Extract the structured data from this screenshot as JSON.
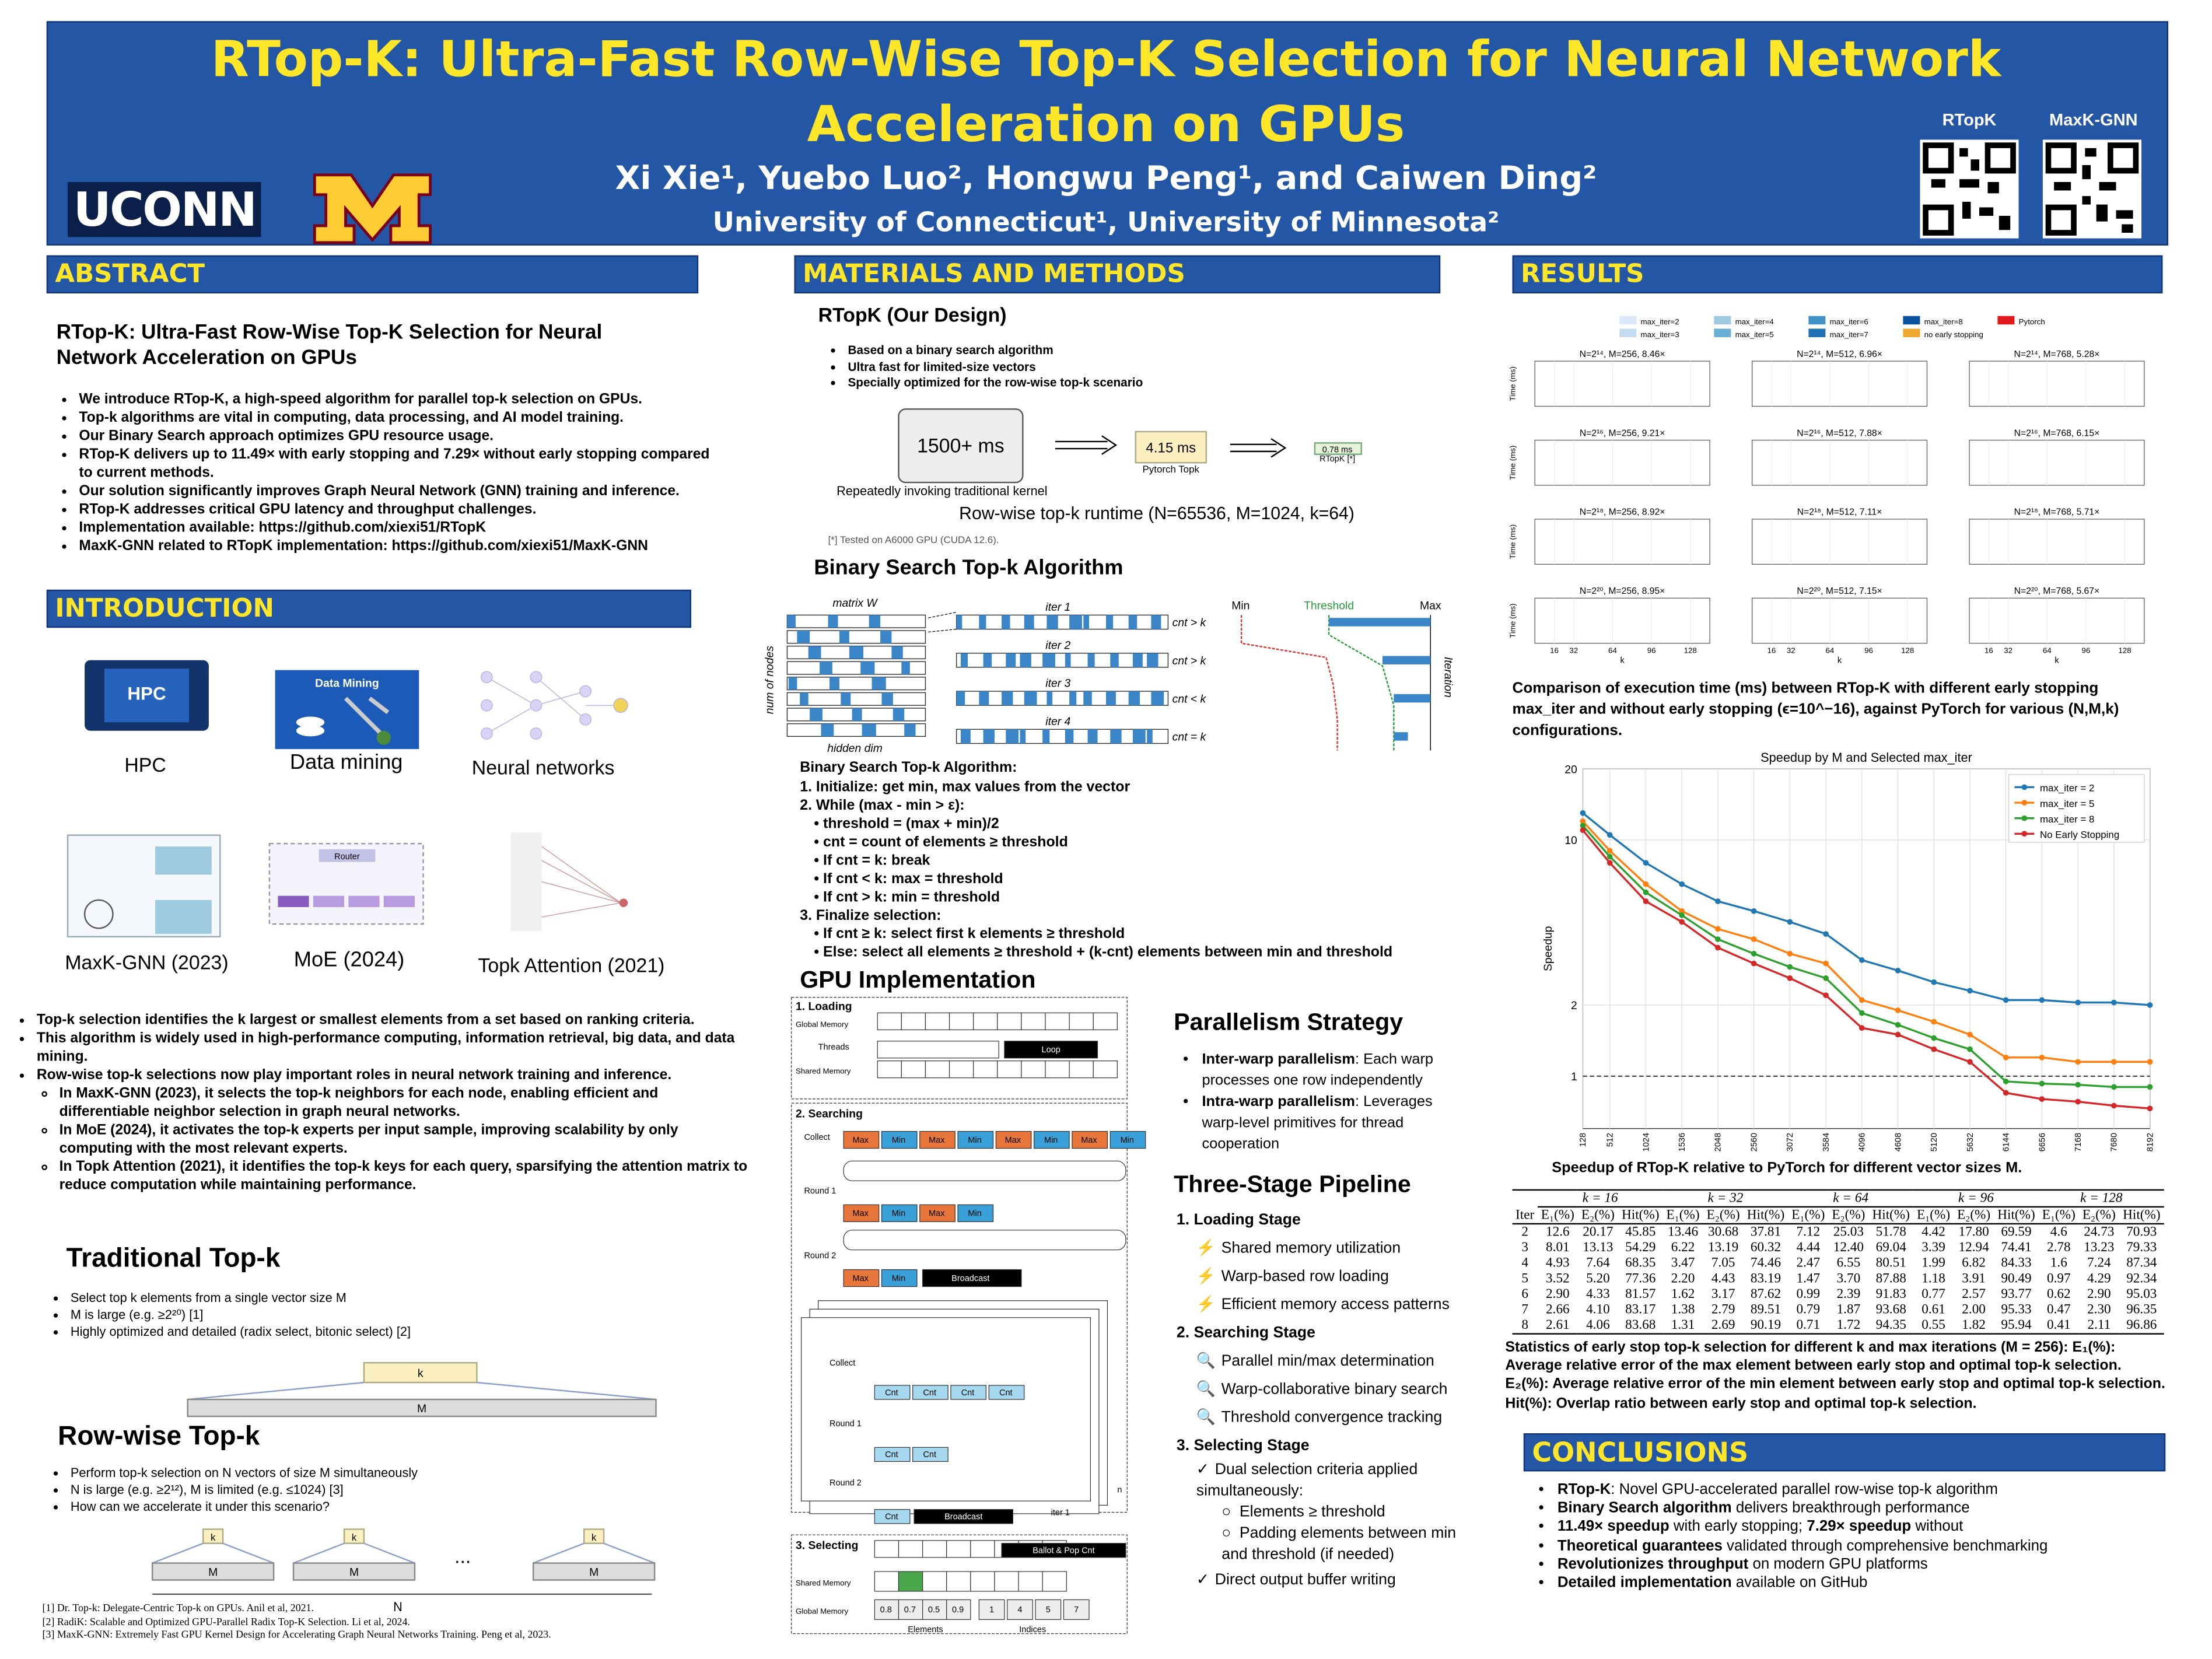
{
  "header": {
    "title": "RTop-K: Ultra-Fast Row-Wise Top-K Selection for Neural Network Acceleration on GPUs",
    "authors": "Xi Xie¹, Yuebo Luo², Hongwu Peng¹, and Caiwen Ding²",
    "affiliations": "University of Connecticut¹, University of Minnesota²",
    "logo_left": "UCONN",
    "qr_labels": [
      "RTopK",
      "MaxK-GNN"
    ]
  },
  "abstract": {
    "heading": "ABSTRACT",
    "title": "RTop-K: Ultra-Fast Row-Wise Top-K Selection for Neural Network Acceleration on GPUs",
    "bullets": [
      "We introduce RTop-K, a high-speed algorithm for parallel top-k selection on GPUs.",
      "Top-k algorithms are vital in computing, data processing, and AI model training.",
      "Our Binary Search approach optimizes GPU resource usage.",
      "RTop-K delivers up to 11.49× with early stopping and 7.29× without early stopping compared to current methods.",
      "Our solution significantly improves Graph Neural Network (GNN) training and inference.",
      "RTop-K addresses critical GPU latency and throughput challenges.",
      "Implementation available: https://github.com/xiexi51/RTopK",
      "MaxK-GNN related to RTopK implementation: https://github.com/xiexi51/MaxK-GNN"
    ]
  },
  "introduction": {
    "heading": "INTRODUCTION",
    "figures": [
      {
        "caption": "HPC",
        "label": "HPC"
      },
      {
        "caption": "Data mining",
        "label": "Data Mining"
      },
      {
        "caption": "Neural networks"
      },
      {
        "caption": "MaxK-GNN (2023)"
      },
      {
        "caption": "MoE (2024)",
        "label": "Router"
      },
      {
        "caption": "Topk Attention (2021)"
      }
    ],
    "bullets": [
      "Top-k selection identifies the k largest or smallest elements from a set based on ranking criteria.",
      "This algorithm is widely used in high-performance computing, information retrieval, big data, and data mining.",
      {
        "text": "Row-wise top-k selections now play important roles in neural network training and inference.",
        "sub": [
          "In MaxK-GNN (2023), it selects the top-k neighbors for each node, enabling efficient and differentiable neighbor selection in graph neural networks.",
          "In MoE (2024), it activates the top-k experts per input sample, improving scalability by only computing with the most relevant experts.",
          "In Topk Attention (2021), it identifies the top-k keys for each query, sparsifying the attention matrix to reduce computation while maintaining performance."
        ]
      }
    ],
    "traditional": {
      "heading": "Traditional Top-k",
      "bullets": [
        "Select top k elements from a single vector size M",
        "M is large (e.g. ≥2²⁰) [1]",
        "Highly optimized and detailed (radix select, bitonic select) [2]"
      ],
      "k": "k",
      "m": "M"
    },
    "rowwise": {
      "heading": "Row-wise Top-k",
      "bullets": [
        "Perform top-k selection on N vectors of size M simultaneously",
        "N is large (e.g. ≥2¹²), M is limited (e.g. ≤1024) [3]",
        "How can we accelerate it under this scenario?"
      ],
      "k": "k",
      "m": "M",
      "ellipsis": "...",
      "n": "N"
    },
    "references": [
      "[1] Dr. Top-k: Delegate-Centric Top-k on GPUs. Anil et al, 2021.",
      "[2] RadiK: Scalable and Optimized GPU-Parallel Radix Top-K Selection. Li et al, 2024.",
      "[3] MaxK-GNN: Extremely Fast GPU Kernel Design for Accelerating Graph Neural Networks Training. Peng et al, 2023."
    ]
  },
  "methods": {
    "heading": "MATERIALS AND METHODS",
    "design": {
      "heading": "RTopK (Our Design)",
      "bullets": [
        "Based on a binary search algorithm",
        "Ultra fast for limited-size vectors",
        "Specially optimized for the row-wise top-k scenario"
      ],
      "baseline": "1500+ ms",
      "baseline_note": "Repeatedly invoking traditional kernel",
      "pytorch": "4.15 ms",
      "pytorch_label": "Pytorch Topk",
      "rtopk": "0.78 ms",
      "rtopk_label": "RTopK [*]",
      "caption": "Row-wise top-k runtime (N=65536, M=1024, k=64)",
      "footnote": "[*] Tested on A6000 GPU (CUDA 12.6)."
    },
    "binary": {
      "heading": "Binary Search Top-k Algorithm",
      "matrix": "matrix W",
      "rows": "num of nodes",
      "cols": "hidden dim",
      "iters": [
        "iter 1",
        "iter 2",
        "iter 3",
        "iter 4"
      ],
      "conds": [
        "cnt > k",
        "cnt > k",
        "cnt < k",
        "cnt = k"
      ],
      "min": "Min",
      "threshold": "Threshold",
      "max": "Max",
      "axis": "Iteration",
      "algorithm_title": "Binary Search Top-k Algorithm:",
      "steps": [
        "1. Initialize: get min, max values from the vector",
        {
          "text": "2. While (max - min > ε):",
          "sub": [
            "threshold = (max + min)/2",
            "cnt = count of elements ≥ threshold",
            "If cnt = k: break",
            "If cnt < k: max = threshold",
            "If cnt > k: min = threshold"
          ]
        },
        {
          "text": "3. Finalize selection:",
          "sub": [
            "If cnt ≥ k: select first k elements ≥ threshold",
            "Else: select all elements ≥ threshold + (k-cnt) elements between min and threshold"
          ]
        }
      ]
    },
    "gpu": {
      "heading": "GPU Implementation",
      "loading": "1. Loading",
      "global": "Global Memory",
      "threads": "Threads",
      "loop": "Loop",
      "shared": "Shared Memory",
      "searching": "2. Searching",
      "collect": "Collect",
      "max": "Max",
      "min": "Min",
      "round1": "Round 1",
      "round2": "Round 2",
      "broadcast": "Broadcast",
      "cnt": "Cnt",
      "iter": "iter 1",
      "n": "n",
      "selecting": "3. Selecting",
      "ballot": "Ballot & Pop Cnt",
      "element_values": [
        "0.8",
        "0.7",
        "0.5",
        "0.9"
      ],
      "index_values": [
        "1",
        "4",
        "5",
        "7"
      ],
      "elements": "Elements",
      "indices": "Indices"
    },
    "parallelism": {
      "heading": "Parallelism Strategy",
      "items": [
        [
          "Inter-warp parallelism",
          ": Each warp processes one row independently"
        ],
        [
          "Intra-warp parallelism",
          ": Leverages warp-level primitives for thread cooperation"
        ]
      ]
    },
    "pipeline": {
      "heading": "Three-Stage Pipeline",
      "stages": [
        {
          "title": "1. Loading Stage",
          "icon": "⚡",
          "items": [
            "Shared memory utilization",
            "Warp-based row loading",
            "Efficient memory access patterns"
          ]
        },
        {
          "title": "2. Searching Stage",
          "icon": "🔍",
          "items": [
            "Parallel min/max determination",
            "Warp-collaborative binary search",
            "Threshold convergence tracking"
          ]
        },
        {
          "title": "3. Selecting Stage",
          "icon": "✓",
          "items": [
            "Dual selection criteria applied simultaneously:"
          ],
          "sub": [
            "Elements ≥ threshold",
            "Padding elements between min and threshold (if needed)"
          ],
          "after": [
            "Direct output buffer writing"
          ]
        }
      ]
    }
  },
  "results": {
    "heading": "RESULTS",
    "grid": {
      "legend": [
        {
          "name": "max_iter=2",
          "color": "#dbe9f6"
        },
        {
          "name": "max_iter=3",
          "color": "#c6dbef"
        },
        {
          "name": "max_iter=4",
          "color": "#9ecae1"
        },
        {
          "name": "max_iter=5",
          "color": "#6baed6"
        },
        {
          "name": "max_iter=6",
          "color": "#4292c6"
        },
        {
          "name": "max_iter=7",
          "color": "#2171b5"
        },
        {
          "name": "max_iter=8",
          "color": "#08519c"
        },
        {
          "name": "no early stopping",
          "color": "#f0a830"
        },
        {
          "name": "Pytorch",
          "color": "#e31a1c"
        }
      ],
      "titles": [
        "N=2¹⁴, M=256, 8.46×",
        "N=2¹⁴, M=512, 6.96×",
        "N=2¹⁴, M=768, 5.28×",
        "N=2¹⁶, M=256, 9.21×",
        "N=2¹⁶, M=512, 7.88×",
        "N=2¹⁶, M=768, 6.15×",
        "N=2¹⁸, M=256, 8.92×",
        "N=2¹⁸, M=512, 7.11×",
        "N=2¹⁸, M=768, 5.71×",
        "N=2²⁰, M=256, 8.95×",
        "N=2²⁰, M=512, 7.15×",
        "N=2²⁰, M=768, 5.67×"
      ],
      "xlim": [
        0,
        144
      ],
      "xticks": [
        16,
        32,
        64,
        96,
        128
      ],
      "xlabel": "k",
      "ylabel": "Time (ms)"
    },
    "grid_caption": "Comparison of execution time (ms) between RTop-K with different early stopping max_iter and without early stopping (ϵ=10^−16), against PyTorch for various (N,M,k) configurations.",
    "chart_data": {
      "type": "line",
      "title": "Speedup by M and Selected max_iter",
      "ylabel": "Speedup",
      "x": [
        128,
        512,
        1024,
        1536,
        2048,
        2560,
        3072,
        3584,
        4096,
        4608,
        5120,
        5632,
        6144,
        6656,
        7168,
        7680,
        8192
      ],
      "xlim": [
        128,
        8192
      ],
      "ylim": [
        0.6,
        20
      ],
      "yticks": [
        1,
        2,
        10,
        20
      ],
      "log_scale": true,
      "grid": true,
      "reference_line": 1,
      "legend": "upper right",
      "series": [
        {
          "name": "max_iter = 2",
          "color": "#1f77b4",
          "values": [
            13,
            10.5,
            8,
            6.5,
            5.5,
            5,
            4.5,
            4,
            3.1,
            2.8,
            2.5,
            2.3,
            2.1,
            2.1,
            2.05,
            2.05,
            2.0
          ]
        },
        {
          "name": "max_iter = 5",
          "color": "#ff7f0e",
          "values": [
            12,
            9,
            6.5,
            5,
            4.2,
            3.8,
            3.3,
            3,
            2.1,
            1.9,
            1.7,
            1.5,
            1.2,
            1.2,
            1.15,
            1.15,
            1.15
          ]
        },
        {
          "name": "max_iter = 8",
          "color": "#2ca02c",
          "values": [
            11.5,
            8.5,
            6,
            4.8,
            3.8,
            3.3,
            2.9,
            2.6,
            1.85,
            1.65,
            1.45,
            1.3,
            0.95,
            0.93,
            0.92,
            0.9,
            0.9
          ]
        },
        {
          "name": "No Early Stopping",
          "color": "#d62728",
          "values": [
            11,
            8,
            5.5,
            4.5,
            3.5,
            3,
            2.6,
            2.2,
            1.6,
            1.5,
            1.3,
            1.15,
            0.85,
            0.8,
            0.78,
            0.75,
            0.73
          ]
        }
      ]
    },
    "speedup_caption": "Speedup of RTop-K relative to PyTorch for different vector sizes M.",
    "table": {
      "groups": [
        "k = 16",
        "k = 32",
        "k = 64",
        "k = 96",
        "k = 128"
      ],
      "columns": [
        "Iter",
        "E₁(%)",
        "E₂(%)",
        "Hit(%)",
        "E₁(%)",
        "E₂(%)",
        "Hit(%)",
        "E₁(%)",
        "E₂(%)",
        "Hit(%)",
        "E₁(%)",
        "E₂(%)",
        "Hit(%)",
        "E₁(%)",
        "E₂(%)",
        "Hit(%)"
      ],
      "rows": [
        [
          "2",
          "12.6",
          "20.17",
          "45.85",
          "13.46",
          "30.68",
          "37.81",
          "7.12",
          "25.03",
          "51.78",
          "4.42",
          "17.80",
          "69.59",
          "4.6",
          "24.73",
          "70.93"
        ],
        [
          "3",
          "8.01",
          "13.13",
          "54.29",
          "6.22",
          "13.19",
          "60.32",
          "4.44",
          "12.40",
          "69.04",
          "3.39",
          "12.94",
          "74.41",
          "2.78",
          "13.23",
          "79.33"
        ],
        [
          "4",
          "4.93",
          "7.64",
          "68.35",
          "3.47",
          "7.05",
          "74.46",
          "2.47",
          "6.55",
          "80.51",
          "1.99",
          "6.82",
          "84.33",
          "1.6",
          "7.24",
          "87.34"
        ],
        [
          "5",
          "3.52",
          "5.20",
          "77.36",
          "2.20",
          "4.43",
          "83.19",
          "1.47",
          "3.70",
          "87.88",
          "1.18",
          "3.91",
          "90.49",
          "0.97",
          "4.29",
          "92.34"
        ],
        [
          "6",
          "2.90",
          "4.33",
          "81.57",
          "1.62",
          "3.17",
          "87.62",
          "0.99",
          "2.39",
          "91.83",
          "0.77",
          "2.57",
          "93.77",
          "0.62",
          "2.90",
          "95.03"
        ],
        [
          "7",
          "2.66",
          "4.10",
          "83.17",
          "1.38",
          "2.79",
          "89.51",
          "0.79",
          "1.87",
          "93.68",
          "0.61",
          "2.00",
          "95.33",
          "0.47",
          "2.30",
          "96.35"
        ],
        [
          "8",
          "2.61",
          "4.06",
          "83.68",
          "1.31",
          "2.69",
          "90.19",
          "0.71",
          "1.72",
          "94.35",
          "0.55",
          "1.82",
          "95.94",
          "0.41",
          "2.11",
          "96.86"
        ]
      ]
    },
    "table_caption": "Statistics of early stop top-k selection for different k and max iterations (M = 256): E₁(%): Average relative error of the max element between early stop and optimal top-k selection. E₂(%): Average relative error of the min element between early stop and optimal top-k selection. Hit(%): Overlap ratio between early stop and optimal top-k selection."
  },
  "conclusions": {
    "heading": "CONCLUSIONS",
    "items": [
      [
        "RTop-K",
        ": Novel GPU-accelerated parallel row-wise top-k algorithm"
      ],
      [
        "Binary Search algorithm",
        " delivers breakthrough performance"
      ],
      [
        "11.49× speedup",
        " with early stopping; ",
        "7.29× speedup",
        " without"
      ],
      [
        "Theoretical guarantees",
        " validated through comprehensive benchmarking"
      ],
      [
        "Revolutionizes throughput",
        " on modern GPU platforms"
      ],
      [
        "Detailed implementation",
        " available on GitHub"
      ]
    ]
  }
}
